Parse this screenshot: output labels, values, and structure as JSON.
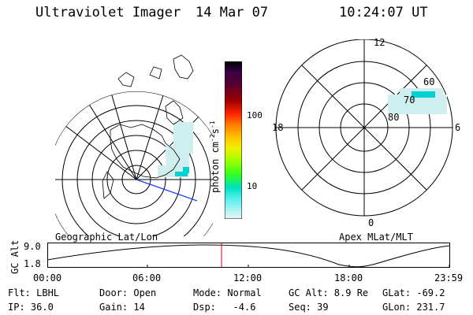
{
  "header": {
    "title": "Ultraviolet Imager",
    "date": "14 Mar 07",
    "time": "10:24:07 UT"
  },
  "left_map": {
    "caption": "Geographic Lat/Lon"
  },
  "right_map": {
    "caption": "Apex MLat/MLT",
    "mlt_labels": {
      "top": "12",
      "bottom": "0",
      "left": "18",
      "right": "6"
    },
    "lat_labels": [
      "60",
      "70",
      "80"
    ]
  },
  "colorbar": {
    "unit_label": "photon cm",
    "unit_sup1": "-2",
    "unit_s": "s",
    "unit_sup2": "-1",
    "ticks": [
      "100",
      "10"
    ],
    "colors": [
      "#000000",
      "#3a0048",
      "#5a0030",
      "#8a0000",
      "#c00000",
      "#ff2000",
      "#ff7a00",
      "#ffc000",
      "#f0f000",
      "#b0ff00",
      "#40ff00",
      "#00f090",
      "#00e0e0",
      "#80ffff",
      "#e8f0f0"
    ]
  },
  "altitude_plot": {
    "axis_label": "GC Alt",
    "y_ticks": [
      "9.0",
      "1.8"
    ],
    "x_ticks": [
      "00:00",
      "06:00",
      "12:00",
      "18:00",
      "23:59"
    ]
  },
  "footer": {
    "row1": [
      "Flt: LBHL",
      "Door: Open",
      "Mode: Normal",
      "GC Alt: 8.9 Re",
      "GLat: -69.2"
    ],
    "row2": [
      "IP: 36.0",
      "Gain: 14",
      "Dsp:   -4.6",
      "Seq: 39",
      "GLon: 231.7"
    ]
  },
  "colors": {
    "marker": "#e00000",
    "track": "#1a3cff",
    "aurora": "#00d0d0"
  }
}
